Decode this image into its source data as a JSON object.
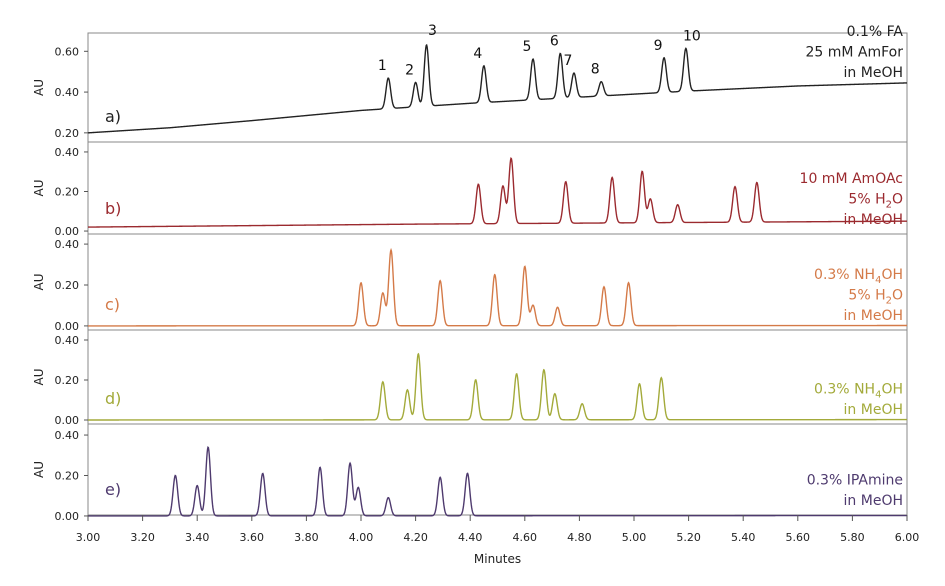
{
  "chart_data": {
    "type": "line",
    "xlabel": "Minutes",
    "xlim": [
      3.0,
      6.0
    ],
    "x_ticks": [
      "3.00",
      "3.20",
      "3.40",
      "3.60",
      "3.80",
      "4.00",
      "4.20",
      "4.40",
      "4.60",
      "4.80",
      "5.00",
      "5.20",
      "5.40",
      "5.60",
      "5.80",
      "6.00"
    ],
    "panels": [
      {
        "id": "a",
        "letter": "a)",
        "ylabel": "AU",
        "ylim": [
          0.16,
          0.68
        ],
        "y_ticks": [
          "0.20",
          "0.40",
          "0.60"
        ],
        "y_tick_values": [
          0.2,
          0.4,
          0.6
        ],
        "color": "#222222",
        "conditions": [
          {
            "main": "0.1% FA"
          },
          {
            "main": "25 mM AmFor"
          },
          {
            "main": "in MeOH"
          }
        ],
        "baseline": [
          [
            3.0,
            0.2
          ],
          [
            3.3,
            0.225
          ],
          [
            3.6,
            0.26
          ],
          [
            4.0,
            0.31
          ],
          [
            4.4,
            0.345
          ],
          [
            4.8,
            0.375
          ],
          [
            5.2,
            0.405
          ],
          [
            5.6,
            0.43
          ],
          [
            6.0,
            0.445
          ]
        ],
        "peaks": [
          {
            "label": "1",
            "rt": 4.1,
            "height": 0.15
          },
          {
            "label": "2",
            "rt": 4.2,
            "height": 0.12
          },
          {
            "label": "3",
            "rt": 4.24,
            "height": 0.3
          },
          {
            "label": "4",
            "rt": 4.45,
            "height": 0.18
          },
          {
            "label": "5",
            "rt": 4.63,
            "height": 0.2
          },
          {
            "label": "6",
            "rt": 4.73,
            "height": 0.22
          },
          {
            "label": "7",
            "rt": 4.78,
            "height": 0.12
          },
          {
            "label": "8",
            "rt": 4.88,
            "height": 0.07
          },
          {
            "label": "9",
            "rt": 5.11,
            "height": 0.17
          },
          {
            "label": "10",
            "rt": 5.19,
            "height": 0.21
          }
        ]
      },
      {
        "id": "b",
        "letter": "b)",
        "ylabel": "AU",
        "ylim": [
          -0.02,
          0.42
        ],
        "y_ticks": [
          "0.00",
          "0.20",
          "0.40"
        ],
        "y_tick_values": [
          0.0,
          0.2,
          0.4
        ],
        "color": "#9b2a2f",
        "conditions": [
          {
            "main": "10 mM AmOAc"
          },
          {
            "main": "5% H",
            "sub": "2",
            "tail": "O"
          },
          {
            "main": "in MeOH"
          }
        ],
        "baseline": [
          [
            3.0,
            0.02
          ],
          [
            4.2,
            0.035
          ],
          [
            6.0,
            0.05
          ]
        ],
        "peaks": [
          {
            "rt": 4.43,
            "height": 0.2
          },
          {
            "rt": 4.52,
            "height": 0.19
          },
          {
            "rt": 4.55,
            "height": 0.33
          },
          {
            "rt": 4.75,
            "height": 0.21
          },
          {
            "rt": 4.92,
            "height": 0.23
          },
          {
            "rt": 5.03,
            "height": 0.26
          },
          {
            "rt": 5.06,
            "height": 0.12
          },
          {
            "rt": 5.16,
            "height": 0.09
          },
          {
            "rt": 5.37,
            "height": 0.18
          },
          {
            "rt": 5.45,
            "height": 0.2
          }
        ]
      },
      {
        "id": "c",
        "letter": "c)",
        "ylabel": "AU",
        "ylim": [
          -0.02,
          0.42
        ],
        "y_ticks": [
          "0.00",
          "0.20",
          "0.40"
        ],
        "y_tick_values": [
          0.0,
          0.2,
          0.4
        ],
        "color": "#d47a48",
        "conditions": [
          {
            "main": "0.3% NH",
            "sub": "4",
            "tail": "OH"
          },
          {
            "main": "5% H",
            "sub": "2",
            "tail": "O"
          },
          {
            "main": "in MeOH"
          }
        ],
        "baseline": [
          [
            3.0,
            0.0
          ],
          [
            6.0,
            0.002
          ]
        ],
        "peaks": [
          {
            "rt": 4.0,
            "height": 0.21
          },
          {
            "rt": 4.08,
            "height": 0.16
          },
          {
            "rt": 4.11,
            "height": 0.37
          },
          {
            "rt": 4.29,
            "height": 0.22
          },
          {
            "rt": 4.49,
            "height": 0.25
          },
          {
            "rt": 4.6,
            "height": 0.29
          },
          {
            "rt": 4.63,
            "height": 0.1
          },
          {
            "rt": 4.72,
            "height": 0.09
          },
          {
            "rt": 4.89,
            "height": 0.19
          },
          {
            "rt": 4.98,
            "height": 0.21
          }
        ]
      },
      {
        "id": "d",
        "letter": "d)",
        "ylabel": "AU",
        "ylim": [
          -0.02,
          0.42
        ],
        "y_ticks": [
          "0.00",
          "0.20",
          "0.40"
        ],
        "y_tick_values": [
          0.0,
          0.2,
          0.4
        ],
        "color": "#a3aa3a",
        "conditions": [
          {
            "main": "0.3% NH",
            "sub": "4",
            "tail": "OH"
          },
          {
            "main": "in MeOH"
          }
        ],
        "baseline": [
          [
            3.0,
            0.0
          ],
          [
            6.0,
            0.002
          ]
        ],
        "peaks": [
          {
            "rt": 4.08,
            "height": 0.19
          },
          {
            "rt": 4.17,
            "height": 0.15
          },
          {
            "rt": 4.21,
            "height": 0.33
          },
          {
            "rt": 4.42,
            "height": 0.2
          },
          {
            "rt": 4.57,
            "height": 0.23
          },
          {
            "rt": 4.67,
            "height": 0.25
          },
          {
            "rt": 4.71,
            "height": 0.13
          },
          {
            "rt": 4.81,
            "height": 0.08
          },
          {
            "rt": 5.02,
            "height": 0.18
          },
          {
            "rt": 5.1,
            "height": 0.21
          }
        ]
      },
      {
        "id": "e",
        "letter": "e)",
        "ylabel": "AU",
        "ylim": [
          -0.02,
          0.42
        ],
        "y_ticks": [
          "0.00",
          "0.20",
          "0.40"
        ],
        "y_tick_values": [
          0.0,
          0.2,
          0.4
        ],
        "color": "#4e3a6e",
        "conditions": [
          {
            "main": "0.3% IPAmine"
          },
          {
            "main": "in MeOH"
          }
        ],
        "baseline": [
          [
            3.0,
            0.0
          ],
          [
            6.0,
            0.002
          ]
        ],
        "peaks": [
          {
            "rt": 3.32,
            "height": 0.2
          },
          {
            "rt": 3.4,
            "height": 0.15
          },
          {
            "rt": 3.44,
            "height": 0.34
          },
          {
            "rt": 3.64,
            "height": 0.21
          },
          {
            "rt": 3.85,
            "height": 0.24
          },
          {
            "rt": 3.96,
            "height": 0.26
          },
          {
            "rt": 3.99,
            "height": 0.14
          },
          {
            "rt": 4.1,
            "height": 0.09
          },
          {
            "rt": 4.29,
            "height": 0.19
          },
          {
            "rt": 4.39,
            "height": 0.21
          }
        ]
      }
    ]
  }
}
